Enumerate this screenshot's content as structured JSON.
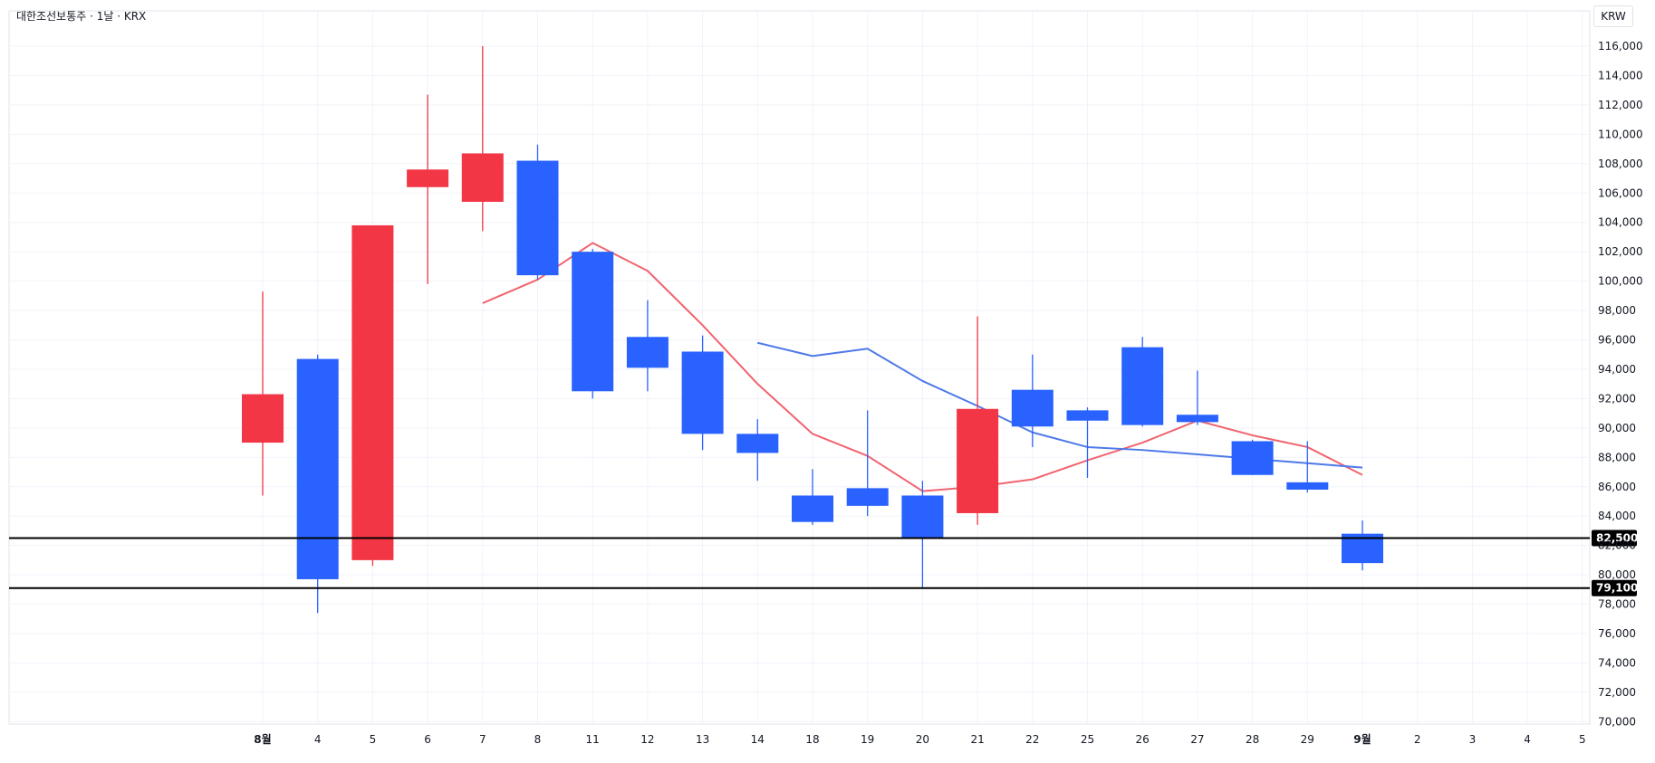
{
  "symbol_title": "대한조선보통주 · 1날 · KRX",
  "currency_label": "KRW",
  "colors": {
    "up": "#f23645",
    "down": "#2962ff",
    "ma_fast": "#f0646e",
    "ma_slow": "#4e79e8",
    "grid": "#f0f3fa",
    "axis_text": "#131722",
    "hline": "#000000"
  },
  "chart_data": {
    "type": "candlestick",
    "ylim": [
      70000,
      116500
    ],
    "yticks": [
      70000,
      72000,
      74000,
      76000,
      78000,
      80000,
      82000,
      84000,
      86000,
      88000,
      90000,
      92000,
      94000,
      96000,
      98000,
      100000,
      102000,
      104000,
      106000,
      108000,
      110000,
      112000,
      114000,
      116000
    ],
    "xticks": [
      {
        "label": "8월",
        "bold": true
      },
      {
        "label": "4"
      },
      {
        "label": "5"
      },
      {
        "label": "6"
      },
      {
        "label": "7"
      },
      {
        "label": "8"
      },
      {
        "label": "11"
      },
      {
        "label": "12"
      },
      {
        "label": "13"
      },
      {
        "label": "14"
      },
      {
        "label": "18"
      },
      {
        "label": "19"
      },
      {
        "label": "20"
      },
      {
        "label": "21"
      },
      {
        "label": "22"
      },
      {
        "label": "25"
      },
      {
        "label": "26"
      },
      {
        "label": "27"
      },
      {
        "label": "28"
      },
      {
        "label": "29"
      },
      {
        "label": "9월",
        "bold": true
      },
      {
        "label": "2"
      },
      {
        "label": "3"
      },
      {
        "label": "4"
      },
      {
        "label": "5"
      }
    ],
    "candles": [
      {
        "x": "8월",
        "open": 89000,
        "high": 99300,
        "low": 85400,
        "close": 92300
      },
      {
        "x": "4",
        "open": 94700,
        "high": 95000,
        "low": 77400,
        "close": 79700
      },
      {
        "x": "5",
        "open": 81000,
        "high": 103800,
        "low": 80600,
        "close": 103800
      },
      {
        "x": "6",
        "open": 106400,
        "high": 112700,
        "low": 99800,
        "close": 107600
      },
      {
        "x": "7",
        "open": 105400,
        "high": 116000,
        "low": 103400,
        "close": 108700
      },
      {
        "x": "8",
        "open": 108200,
        "high": 109300,
        "low": 100100,
        "close": 100400
      },
      {
        "x": "11",
        "open": 102000,
        "high": 102200,
        "low": 92000,
        "close": 92500
      },
      {
        "x": "12",
        "open": 96200,
        "high": 98700,
        "low": 92500,
        "close": 94100
      },
      {
        "x": "13",
        "open": 95200,
        "high": 96300,
        "low": 88500,
        "close": 89600
      },
      {
        "x": "14",
        "open": 89600,
        "high": 90600,
        "low": 86400,
        "close": 88300
      },
      {
        "x": "18",
        "open": 85400,
        "high": 87200,
        "low": 83400,
        "close": 83600
      },
      {
        "x": "19",
        "open": 85900,
        "high": 91200,
        "low": 84000,
        "close": 84700
      },
      {
        "x": "20",
        "open": 85400,
        "high": 86400,
        "low": 79100,
        "close": 82500
      },
      {
        "x": "21",
        "open": 84200,
        "high": 97600,
        "low": 83400,
        "close": 91300
      },
      {
        "x": "22",
        "open": 92600,
        "high": 95000,
        "low": 88700,
        "close": 90100
      },
      {
        "x": "25",
        "open": 91200,
        "high": 91400,
        "low": 86600,
        "close": 90500
      },
      {
        "x": "26",
        "open": 95500,
        "high": 96200,
        "low": 90100,
        "close": 90200
      },
      {
        "x": "27",
        "open": 90900,
        "high": 93900,
        "low": 90200,
        "close": 90400
      },
      {
        "x": "28",
        "open": 89100,
        "high": 89200,
        "low": 86800,
        "close": 86800
      },
      {
        "x": "29",
        "open": 86300,
        "high": 89100,
        "low": 85600,
        "close": 85800
      },
      {
        "x": "9월",
        "open": 82800,
        "high": 83700,
        "low": 80300,
        "close": 80800
      }
    ],
    "series": [
      {
        "color": "#f0646e",
        "points": [
          [
            "7",
            98500
          ],
          [
            "8",
            100100
          ],
          [
            "11",
            102600
          ],
          [
            "12",
            100700
          ],
          [
            "13",
            97000
          ],
          [
            "14",
            93000
          ],
          [
            "18",
            89600
          ],
          [
            "19",
            88100
          ],
          [
            "20",
            85700
          ],
          [
            "21",
            86000
          ],
          [
            "22",
            86500
          ],
          [
            "25",
            87800
          ],
          [
            "26",
            89000
          ],
          [
            "27",
            90500
          ],
          [
            "28",
            89500
          ],
          [
            "29",
            88700
          ],
          [
            "9월",
            86800
          ]
        ]
      },
      {
        "color": "#4e79e8",
        "points": [
          [
            "14",
            95800
          ],
          [
            "18",
            94900
          ],
          [
            "19",
            95400
          ],
          [
            "20",
            93200
          ],
          [
            "21",
            91500
          ],
          [
            "22",
            89700
          ],
          [
            "25",
            88700
          ],
          [
            "26",
            88500
          ],
          [
            "27",
            88200
          ],
          [
            "28",
            87900
          ],
          [
            "29",
            87600
          ],
          [
            "9월",
            87300
          ]
        ]
      }
    ],
    "hlines": [
      {
        "value": 82500,
        "label": "82,500"
      },
      {
        "value": 79100,
        "label": "79,100"
      }
    ]
  }
}
